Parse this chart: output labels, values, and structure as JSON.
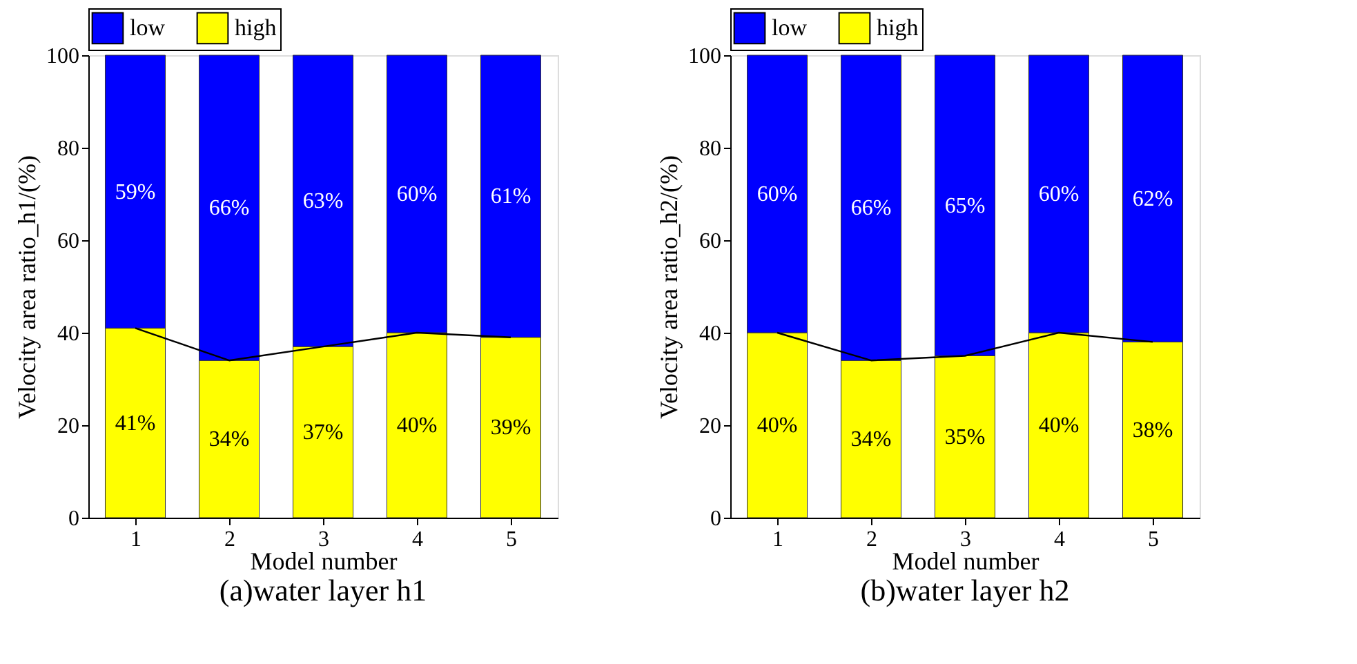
{
  "chart_data": [
    {
      "type": "bar",
      "stacked": true,
      "title": "(a)water layer h1",
      "xlabel": "Model number",
      "ylabel": "Velocity area ratio_h1/(%)",
      "categories": [
        "1",
        "2",
        "3",
        "4",
        "5"
      ],
      "ylim": [
        0,
        100
      ],
      "yticks": [
        0,
        20,
        40,
        60,
        80,
        100
      ],
      "grid": false,
      "legend": "top",
      "series": [
        {
          "name": "high",
          "color": "#ffff00",
          "values": [
            41,
            34,
            37,
            40,
            39
          ],
          "value_labels": [
            "41%",
            "34%",
            "37%",
            "40%",
            "39%"
          ]
        },
        {
          "name": "low",
          "color": "#0000ff",
          "values": [
            59,
            66,
            63,
            60,
            61
          ],
          "value_labels": [
            "59%",
            "66%",
            "63%",
            "60%",
            "61%"
          ]
        },
        {
          "type": "line",
          "color": "#000000",
          "values": [
            41,
            34,
            37,
            40,
            39
          ]
        }
      ]
    },
    {
      "type": "bar",
      "stacked": true,
      "title": "(b)water layer h2",
      "xlabel": "Model number",
      "ylabel": "Velocity area ratio_h2/(%)",
      "categories": [
        "1",
        "2",
        "3",
        "4",
        "5"
      ],
      "ylim": [
        0,
        100
      ],
      "yticks": [
        0,
        20,
        40,
        60,
        80,
        100
      ],
      "grid": false,
      "legend": "top",
      "series": [
        {
          "name": "high",
          "color": "#ffff00",
          "values": [
            40,
            34,
            35,
            40,
            38
          ],
          "value_labels": [
            "40%",
            "34%",
            "35%",
            "40%",
            "38%"
          ]
        },
        {
          "name": "low",
          "color": "#0000ff",
          "values": [
            60,
            66,
            65,
            60,
            62
          ],
          "value_labels": [
            "60%",
            "66%",
            "65%",
            "60%",
            "62%"
          ]
        },
        {
          "type": "line",
          "color": "#000000",
          "values": [
            40,
            34,
            35,
            40,
            38
          ]
        }
      ]
    }
  ]
}
